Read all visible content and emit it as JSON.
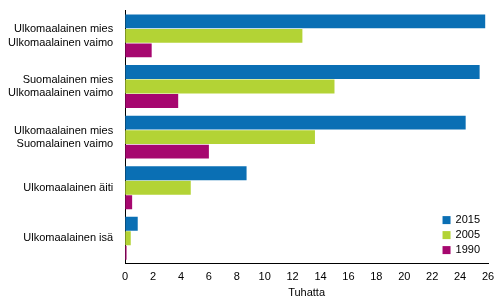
{
  "chart_data": {
    "type": "bar",
    "orientation": "horizontal",
    "categories": [
      [
        "Ulkomaalainen mies",
        "Ulkomaalainen vaimo"
      ],
      [
        "Suomalainen mies",
        "Ulkomaalainen vaimo"
      ],
      [
        "Ulkomaalainen mies",
        "Suomalainen vaimo"
      ],
      [
        "Ulkomaalainen äiti"
      ],
      [
        "Ulkomaalainen isä"
      ]
    ],
    "series": [
      {
        "name": "2015",
        "color": "#0a6fb4",
        "values": [
          25.8,
          25.4,
          24.4,
          8.7,
          0.9
        ]
      },
      {
        "name": "2005",
        "color": "#b3d335",
        "values": [
          12.7,
          15.0,
          13.6,
          4.7,
          0.4
        ]
      },
      {
        "name": "1990",
        "color": "#a6076f",
        "values": [
          1.9,
          3.8,
          6.0,
          0.5,
          0.1
        ]
      }
    ],
    "x_label": "Tuhatta",
    "xlim": [
      0,
      26
    ],
    "xticks": [
      0,
      2,
      4,
      6,
      8,
      10,
      12,
      14,
      16,
      18,
      20,
      22,
      24,
      26
    ],
    "grid": false,
    "legend": "bottom-right"
  }
}
